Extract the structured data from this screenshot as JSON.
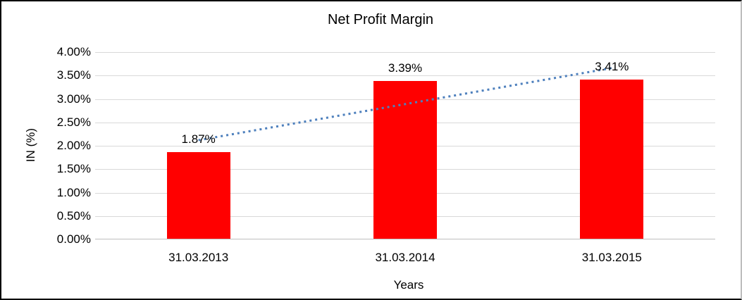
{
  "chart_data": {
    "type": "bar",
    "title": "Net Profit Margin",
    "xlabel": "Years",
    "ylabel": "IN (%)",
    "categories": [
      "31.03.2013",
      "31.03.2014",
      "31.03.2015"
    ],
    "values": [
      1.87,
      3.39,
      3.41
    ],
    "value_labels": [
      "1.87%",
      "3.39%",
      "3.41%"
    ],
    "ylim": [
      0,
      4
    ],
    "ytick_step": 0.5,
    "ytick_labels": [
      "0.00%",
      "0.50%",
      "1.00%",
      "1.50%",
      "2.00%",
      "2.50%",
      "3.00%",
      "3.50%",
      "4.00%"
    ],
    "grid": true,
    "legend": "none",
    "bar_color": "#ff0000",
    "gridline_color": "#d9d9d9",
    "axis_line_color": "#bfbfbf",
    "trendline": {
      "type": "linear",
      "style": "dotted",
      "color": "#4e80bd",
      "start_value_pct": 2.12,
      "end_value_pct": 3.66
    }
  }
}
